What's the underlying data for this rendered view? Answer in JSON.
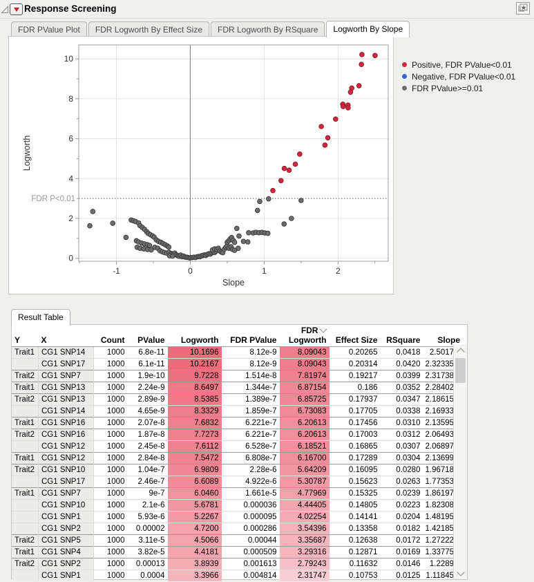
{
  "window": {
    "title": "Response Screening"
  },
  "tabs": {
    "items": [
      "FDR PValue Plot",
      "FDR Logworth By Effect Size",
      "FDR Logworth By RSquare",
      "Logworth By Slope"
    ],
    "active": "Logworth By Slope"
  },
  "chart_data": {
    "type": "scatter",
    "xlabel": "Slope",
    "ylabel": "Logworth",
    "xlim": [
      -1.51,
      2.68
    ],
    "ylim": [
      -0.15,
      10.7
    ],
    "xticks": [
      -1,
      0,
      1,
      2
    ],
    "xticks_minor": [
      -1.5,
      -0.5,
      0.5,
      1.5,
      2.5
    ],
    "yticks": [
      0,
      2,
      4,
      6,
      8,
      10
    ],
    "yticks_minor": [
      1,
      3,
      5,
      7,
      9
    ],
    "grid": true,
    "reference_lines": {
      "vline_x": 0,
      "hline_y": 3,
      "hline_label": "FDR P<0.01",
      "hline_style": "dotted"
    },
    "legend_position": "right-top",
    "series": [
      {
        "name": "Positive, FDR PValue<0.01",
        "color": "#d02940",
        "stroke": "#8e1b2b",
        "points": [
          [
            2.5017,
            10.1696
          ],
          [
            2.32335,
            10.2167
          ],
          [
            2.31738,
            9.7228
          ],
          [
            2.28402,
            8.6497
          ],
          [
            2.18615,
            8.5385
          ],
          [
            2.16933,
            8.3329
          ],
          [
            2.13595,
            7.6832
          ],
          [
            2.06493,
            7.7273
          ],
          [
            2.06897,
            7.6112
          ],
          [
            2.13699,
            7.5472
          ],
          [
            1.96718,
            6.9809
          ],
          [
            1.77353,
            6.6089
          ],
          [
            1.86197,
            6.046
          ],
          [
            1.82308,
            5.6781
          ],
          [
            1.48195,
            5.2267
          ],
          [
            1.42185,
            4.72
          ],
          [
            1.27222,
            4.5066
          ],
          [
            1.33775,
            4.4181
          ],
          [
            1.2289,
            3.8939
          ],
          [
            1.11845,
            3.3966
          ]
        ]
      },
      {
        "name": "Negative, FDR PValue<0.01",
        "color": "#3a63d2",
        "stroke": "#25418f",
        "points": []
      },
      {
        "name": "FDR PValue>=0.01",
        "color": "#6e6e6e",
        "stroke": "#3c3c3c",
        "points": [
          [
            -1.32,
            2.35
          ],
          [
            -1.36,
            1.63
          ],
          [
            -1.05,
            1.76
          ],
          [
            -0.87,
            1.05
          ],
          [
            -0.8,
            1.92
          ],
          [
            -0.77,
            1.88
          ],
          [
            -0.74,
            1.84
          ],
          [
            -0.7,
            1.77
          ],
          [
            -0.68,
            1.64
          ],
          [
            -0.65,
            1.55
          ],
          [
            -0.62,
            1.45
          ],
          [
            -0.59,
            1.33
          ],
          [
            -0.57,
            1.25
          ],
          [
            -0.54,
            1.18
          ],
          [
            -0.51,
            1.12
          ],
          [
            -0.49,
            1.06
          ],
          [
            -0.73,
            0.88
          ],
          [
            -0.7,
            0.82
          ],
          [
            -0.66,
            0.76
          ],
          [
            -0.62,
            0.72
          ],
          [
            -0.58,
            0.68
          ],
          [
            -0.55,
            0.64
          ],
          [
            -0.72,
            0.55
          ],
          [
            -0.68,
            0.5
          ],
          [
            -0.63,
            0.47
          ],
          [
            -0.58,
            0.44
          ],
          [
            -0.53,
            0.42
          ],
          [
            -0.48,
            0.55
          ],
          [
            -0.44,
            0.5
          ],
          [
            -0.46,
            0.92
          ],
          [
            -0.43,
            0.85
          ],
          [
            -0.4,
            0.8
          ],
          [
            -0.37,
            0.74
          ],
          [
            -0.34,
            0.68
          ],
          [
            -0.31,
            0.62
          ],
          [
            -0.29,
            0.56
          ],
          [
            -0.41,
            0.38
          ],
          [
            -0.38,
            0.33
          ],
          [
            -0.35,
            0.29
          ],
          [
            -0.32,
            0.26
          ],
          [
            -0.29,
            0.3
          ],
          [
            -0.26,
            0.24
          ],
          [
            -0.24,
            0.2
          ],
          [
            -0.21,
            0.26
          ],
          [
            -0.19,
            0.17
          ],
          [
            -0.28,
            0.13
          ],
          [
            -0.24,
            0.11
          ],
          [
            -0.17,
            0.13
          ],
          [
            -0.15,
            0.1
          ],
          [
            -0.13,
            0.16
          ],
          [
            -0.11,
            0.08
          ],
          [
            -0.09,
            0.11
          ],
          [
            -0.07,
            0.06
          ],
          [
            -0.05,
            0.05
          ],
          [
            -0.03,
            0.04
          ],
          [
            -0.01,
            0.02
          ],
          [
            0.01,
            0.03
          ],
          [
            0.03,
            0.04
          ],
          [
            0.05,
            0.05
          ],
          [
            0.07,
            0.04
          ],
          [
            0.09,
            0.07
          ],
          [
            0.11,
            0.09
          ],
          [
            0.13,
            0.08
          ],
          [
            0.15,
            0.12
          ],
          [
            0.17,
            0.14
          ],
          [
            0.19,
            0.17
          ],
          [
            0.21,
            0.14
          ],
          [
            0.23,
            0.19
          ],
          [
            0.25,
            0.23
          ],
          [
            0.27,
            0.21
          ],
          [
            0.29,
            0.27
          ],
          [
            0.31,
            0.31
          ],
          [
            0.33,
            0.29
          ],
          [
            0.35,
            0.36
          ],
          [
            0.3,
            0.42
          ],
          [
            0.33,
            0.47
          ],
          [
            0.36,
            0.44
          ],
          [
            0.38,
            0.5
          ],
          [
            0.4,
            0.37
          ],
          [
            0.42,
            0.31
          ],
          [
            0.44,
            0.28
          ],
          [
            0.46,
            0.45
          ],
          [
            0.48,
            0.55
          ],
          [
            0.5,
            0.62
          ],
          [
            0.52,
            0.5
          ],
          [
            0.55,
            0.58
          ],
          [
            0.5,
            0.8
          ],
          [
            0.52,
            0.88
          ],
          [
            0.54,
            0.97
          ],
          [
            0.56,
            1.04
          ],
          [
            0.58,
            0.9
          ],
          [
            0.6,
            0.8
          ],
          [
            0.57,
            0.45
          ],
          [
            0.6,
            0.4
          ],
          [
            0.65,
            0.5
          ],
          [
            0.63,
            1.5
          ],
          [
            0.66,
            1.12
          ],
          [
            0.72,
            0.85
          ],
          [
            0.78,
            0.82
          ],
          [
            0.79,
            1.28
          ],
          [
            0.85,
            1.27
          ],
          [
            0.89,
            1.3
          ],
          [
            0.93,
            1.28
          ],
          [
            0.97,
            1.3
          ],
          [
            1.01,
            1.27
          ],
          [
            1.05,
            1.25
          ],
          [
            0.91,
            2.4
          ],
          [
            0.94,
            2.85
          ],
          [
            1.06,
            2.98
          ],
          [
            1.27,
            1.72
          ],
          [
            1.37,
            2.0
          ],
          [
            1.5,
            2.9
          ]
        ]
      }
    ]
  },
  "result_table": {
    "tab_label": "Result Table",
    "columns": [
      {
        "key": "y",
        "label": "Y"
      },
      {
        "key": "x",
        "label": "X"
      },
      {
        "key": "count",
        "label": "Count"
      },
      {
        "key": "pvalue",
        "label": "PValue"
      },
      {
        "key": "logworth",
        "label": "Logworth",
        "heat": true
      },
      {
        "key": "fdr_pvalue",
        "label": "FDR PValue"
      },
      {
        "key": "fdr_logworth",
        "label": "Logworth",
        "top_line": "FDR",
        "heat": true,
        "sorted": "desc"
      },
      {
        "key": "effect_size",
        "label": "Effect Size"
      },
      {
        "key": "rsquare",
        "label": "RSquare"
      },
      {
        "key": "slope",
        "label": "Slope"
      }
    ],
    "rows": [
      [
        "Trait1",
        "CG1 SNP14",
        "1000",
        "6.8e-11",
        "10.1696",
        "8.12e-9",
        "8.09043",
        "0.20265",
        "0.0418",
        "2.5017"
      ],
      [
        "",
        "CG1 SNP17",
        "1000",
        "6.1e-11",
        "10.2167",
        "8.12e-9",
        "8.09043",
        "0.20314",
        "0.0420",
        "2.32335"
      ],
      [
        "Trait2",
        "CG1 SNP7",
        "1000",
        "1.9e-10",
        "9.7228",
        "1.514e-8",
        "7.81974",
        "0.19217",
        "0.0399",
        "2.31738"
      ],
      [
        "Trait1",
        "CG1 SNP13",
        "1000",
        "2.24e-9",
        "8.6497",
        "1.344e-7",
        "6.87154",
        "0.186",
        "0.0352",
        "2.28402"
      ],
      [
        "Trait2",
        "CG1 SNP13",
        "1000",
        "2.89e-9",
        "8.5385",
        "1.389e-7",
        "6.85725",
        "0.17937",
        "0.0347",
        "2.18615"
      ],
      [
        "",
        "CG1 SNP14",
        "1000",
        "4.65e-9",
        "8.3329",
        "1.859e-7",
        "6.73083",
        "0.17705",
        "0.0338",
        "2.16933"
      ],
      [
        "Trait1",
        "CG1 SNP16",
        "1000",
        "2.07e-8",
        "7.6832",
        "6.221e-7",
        "6.20613",
        "0.17456",
        "0.0310",
        "2.13595"
      ],
      [
        "Trait2",
        "CG1 SNP16",
        "1000",
        "1.87e-8",
        "7.7273",
        "6.221e-7",
        "6.20613",
        "0.17003",
        "0.0312",
        "2.06493"
      ],
      [
        "",
        "CG1 SNP12",
        "1000",
        "2.45e-8",
        "7.6112",
        "6.528e-7",
        "6.18521",
        "0.16865",
        "0.0307",
        "2.06897"
      ],
      [
        "Trait1",
        "CG1 SNP12",
        "1000",
        "2.84e-8",
        "7.5472",
        "6.808e-7",
        "6.16700",
        "0.17289",
        "0.0304",
        "2.13699"
      ],
      [
        "Trait2",
        "CG1 SNP10",
        "1000",
        "1.04e-7",
        "6.9809",
        "2.28e-6",
        "5.64209",
        "0.16095",
        "0.0280",
        "1.96718"
      ],
      [
        "",
        "CG1 SNP17",
        "1000",
        "2.46e-7",
        "6.6089",
        "4.922e-6",
        "5.30787",
        "0.15623",
        "0.0263",
        "1.77353"
      ],
      [
        "Trait1",
        "CG1 SNP7",
        "1000",
        "9e-7",
        "6.0460",
        "1.661e-5",
        "4.77969",
        "0.15325",
        "0.0239",
        "1.86197"
      ],
      [
        "",
        "CG1 SNP10",
        "1000",
        "2.1e-6",
        "5.6781",
        "0.000036",
        "4.44405",
        "0.14805",
        "0.0223",
        "1.82308"
      ],
      [
        "",
        "CG1 SNP1",
        "1000",
        "5.93e-6",
        "5.2267",
        "0.000095",
        "4.02254",
        "0.14141",
        "0.0204",
        "1.48195"
      ],
      [
        "",
        "CG1 SNP2",
        "1000",
        "0.00002",
        "4.7200",
        "0.000286",
        "3.54396",
        "0.13358",
        "0.0182",
        "1.42185"
      ],
      [
        "Trait2",
        "CG1 SNP5",
        "1000",
        "3.11e-5",
        "4.5066",
        "0.00044",
        "3.35687",
        "0.12638",
        "0.0172",
        "1.27222"
      ],
      [
        "Trait1",
        "CG1 SNP4",
        "1000",
        "3.82e-5",
        "4.4181",
        "0.000509",
        "3.29316",
        "0.12871",
        "0.0169",
        "1.33775"
      ],
      [
        "Trait2",
        "CG1 SNP2",
        "1000",
        "0.00013",
        "3.8939",
        "0.001613",
        "2.79243",
        "0.11632",
        "0.0146",
        "1.2289"
      ],
      [
        "",
        "CG1 SNP1",
        "1000",
        "0.0004",
        "3.3966",
        "0.004814",
        "2.31747",
        "0.10753",
        "0.0125",
        "1.11845"
      ]
    ],
    "heat_colors": {
      "light": "#fad6da",
      "deep": "#ec6c7c"
    }
  }
}
